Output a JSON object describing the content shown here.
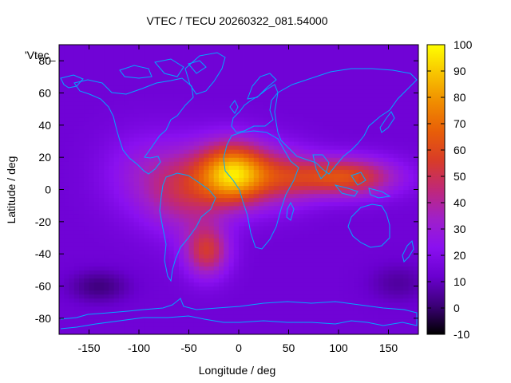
{
  "chart_data": {
    "type": "heatmap",
    "title": "VTEC / TECU 20260322_081.54000",
    "xlabel": "Longitude / deg",
    "ylabel": "Latitude / deg",
    "legend_label": "'Vtec_",
    "xlim": [
      -180,
      180
    ],
    "ylim": [
      -90,
      90
    ],
    "xticks": [
      -150,
      -100,
      -50,
      0,
      50,
      100,
      150
    ],
    "yticks": [
      -80,
      -60,
      -40,
      -20,
      0,
      20,
      40,
      60,
      80
    ],
    "colorbar": {
      "range": [
        -10,
        100
      ],
      "ticks": [
        -10,
        0,
        10,
        20,
        30,
        40,
        50,
        60,
        70,
        80,
        90,
        100
      ]
    },
    "colormap": [
      "#000000",
      "#3c0078",
      "#6a00d0",
      "#8a10f0",
      "#a020c8",
      "#c02878",
      "#d83c28",
      "#e85e08",
      "#f08c00",
      "#f8c400",
      "#ffff00"
    ],
    "coastline_color": "#00a8ff",
    "grid": false,
    "field": {
      "background": 14,
      "components": [
        {
          "lon": -5,
          "lat": 10,
          "amp": 74,
          "wlon": 35,
          "wlat": 19
        },
        {
          "lon": 105,
          "lat": 8,
          "amp": 48,
          "wlon": 52,
          "wlat": 12
        },
        {
          "lon": -32,
          "lat": -38,
          "amp": 38,
          "wlon": 22,
          "wlat": 16
        },
        {
          "lon": -55,
          "lat": 0,
          "amp": 30,
          "wlon": 40,
          "wlat": 26
        },
        {
          "lon": 45,
          "lat": 8,
          "amp": 25,
          "wlon": 35,
          "wlat": 18
        },
        {
          "lon": -100,
          "lat": 10,
          "amp": 12,
          "wlon": 40,
          "wlat": 25
        },
        {
          "lon": -140,
          "lat": -60,
          "amp": -12,
          "wlon": 30,
          "wlat": 10
        },
        {
          "lon": 160,
          "lat": -58,
          "amp": -8,
          "wlon": 30,
          "wlat": 12
        }
      ]
    }
  }
}
